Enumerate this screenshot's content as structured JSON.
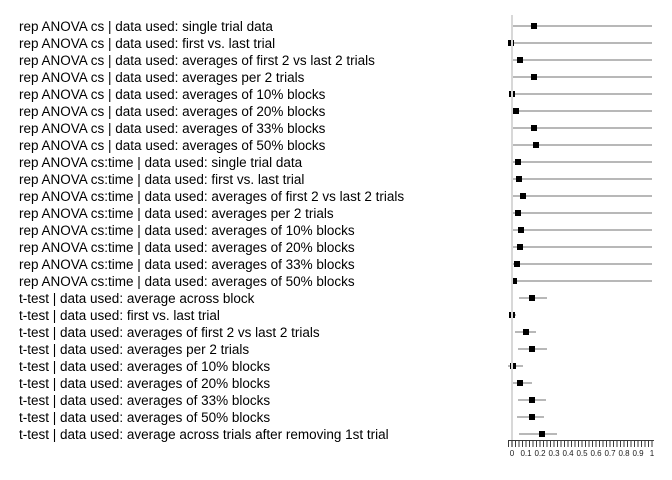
{
  "page": {
    "background": "#ffffff",
    "colors": {
      "marker": "#000000",
      "error_bar": "#b8b8b8",
      "axis_line": "#d8d8d8",
      "tick": "#3a3a3a",
      "label_text": "#000000"
    }
  },
  "chart_data": {
    "type": "scatter",
    "title": "",
    "xlabel": "",
    "ylabel": "",
    "xlim": [
      0,
      1
    ],
    "x_ticks": [
      "0",
      "0.1",
      "0.2",
      "0.3",
      "0.4",
      "0.5",
      "0.6",
      "0.7",
      "0.8",
      "0.9",
      "1"
    ],
    "minor_tick_interval": 0.025,
    "marker_style": "filled black square",
    "interval_style": "gray horizontal line",
    "legend": "none",
    "grid": "off",
    "rows": [
      {
        "label": "rep ANOVA cs | data used: single trial data",
        "value": 0.16,
        "ci": [
          0.0,
          1.0
        ]
      },
      {
        "label": "rep ANOVA cs | data used: first vs. last trial",
        "value": -0.01,
        "ci": [
          0.0,
          1.0
        ]
      },
      {
        "label": "rep ANOVA cs | data used: averages of first 2 vs last 2 trials",
        "value": 0.06,
        "ci": [
          0.0,
          1.0
        ]
      },
      {
        "label": "rep ANOVA cs | data used: averages per 2 trials",
        "value": 0.16,
        "ci": [
          0.0,
          1.0
        ]
      },
      {
        "label": "rep ANOVA cs | data used: averages of 10% blocks",
        "value": 0.0,
        "ci": [
          0.0,
          1.0
        ]
      },
      {
        "label": "rep ANOVA cs | data used: averages of 20% blocks",
        "value": 0.03,
        "ci": [
          0.0,
          1.0
        ]
      },
      {
        "label": "rep ANOVA cs | data used: averages of 33% blocks",
        "value": 0.16,
        "ci": [
          0.0,
          1.0
        ]
      },
      {
        "label": "rep ANOVA cs | data used: averages of 50% blocks",
        "value": 0.17,
        "ci": [
          0.0,
          1.0
        ]
      },
      {
        "label": "rep ANOVA cs:time | data used: single trial data",
        "value": 0.045,
        "ci": [
          0.0,
          1.0
        ]
      },
      {
        "label": "rep ANOVA cs:time | data used: first vs. last trial",
        "value": 0.05,
        "ci": [
          0.0,
          1.0
        ]
      },
      {
        "label": "rep ANOVA cs:time | data used: averages of first 2 vs last 2 trials",
        "value": 0.08,
        "ci": [
          0.0,
          1.0
        ]
      },
      {
        "label": "rep ANOVA cs:time | data used: averages per 2 trials",
        "value": 0.045,
        "ci": [
          0.0,
          1.0
        ]
      },
      {
        "label": "rep ANOVA cs:time | data used: averages of 10% blocks",
        "value": 0.065,
        "ci": [
          0.0,
          1.0
        ]
      },
      {
        "label": "rep ANOVA cs:time | data used: averages of 20% blocks",
        "value": 0.06,
        "ci": [
          0.0,
          1.0
        ]
      },
      {
        "label": "rep ANOVA cs:time | data used: averages of 33% blocks",
        "value": 0.038,
        "ci": [
          0.0,
          1.0
        ]
      },
      {
        "label": "rep ANOVA cs:time | data used: averages of 50% blocks",
        "value": 0.015,
        "ci": [
          0.0,
          1.0
        ]
      },
      {
        "label": "t-test | data used: average across block",
        "value": 0.14,
        "ci": [
          0.05,
          0.25
        ]
      },
      {
        "label": "t-test | data used: first vs. last trial",
        "value": 0.0,
        "ci": [
          -0.025,
          0.025
        ]
      },
      {
        "label": "t-test | data used: averages of first 2 vs last 2 trials",
        "value": 0.1,
        "ci": [
          0.02,
          0.17
        ]
      },
      {
        "label": "t-test | data used: averages per 2 trials",
        "value": 0.14,
        "ci": [
          0.045,
          0.25
        ]
      },
      {
        "label": "t-test | data used: averages of 10% blocks",
        "value": 0.005,
        "ci": [
          -0.03,
          0.08
        ]
      },
      {
        "label": "t-test | data used: averages of 20% blocks",
        "value": 0.055,
        "ci": [
          0.01,
          0.14
        ]
      },
      {
        "label": "t-test | data used: averages of 33% blocks",
        "value": 0.14,
        "ci": [
          0.04,
          0.24
        ]
      },
      {
        "label": "t-test | data used: averages of 50% blocks",
        "value": 0.145,
        "ci": [
          0.035,
          0.23
        ]
      },
      {
        "label": "t-test | data used: average across trials after removing 1st trial",
        "value": 0.215,
        "ci": [
          0.05,
          0.32
        ]
      }
    ]
  }
}
